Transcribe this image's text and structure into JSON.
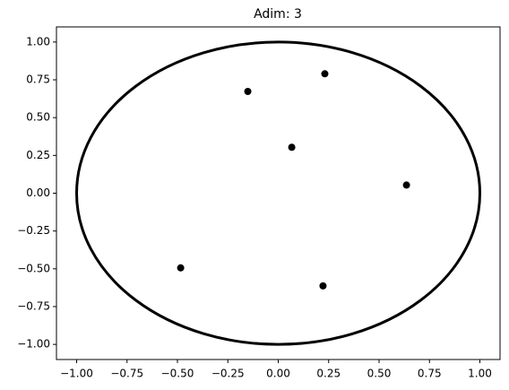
{
  "chart_data": {
    "type": "scatter",
    "title": "Adim: 3",
    "x": [
      0.231,
      -0.151,
      0.067,
      0.636,
      -0.484,
      0.222
    ],
    "values": [
      0.79,
      0.673,
      0.304,
      0.054,
      -0.494,
      -0.613
    ],
    "color": "#000000",
    "circle": {
      "center": [
        0,
        0
      ],
      "radius": 1
    },
    "xlim": [
      -1.1,
      1.1
    ],
    "ylim": [
      -1.1,
      1.1
    ],
    "xticks": [
      {
        "value": -1,
        "label": "−1.00"
      },
      {
        "value": -0.75,
        "label": "−0.75"
      },
      {
        "value": -0.5,
        "label": "−0.50"
      },
      {
        "value": -0.25,
        "label": "−0.25"
      },
      {
        "value": 0,
        "label": "0.00"
      },
      {
        "value": 0.25,
        "label": "0.25"
      },
      {
        "value": 0.5,
        "label": "0.50"
      },
      {
        "value": 0.75,
        "label": "0.75"
      },
      {
        "value": 1,
        "label": "1.00"
      }
    ],
    "yticks": [
      {
        "value": -1,
        "label": "−1.00"
      },
      {
        "value": -0.75,
        "label": "−0.75"
      },
      {
        "value": -0.5,
        "label": "−0.50"
      },
      {
        "value": -0.25,
        "label": "−0.25"
      },
      {
        "value": 0,
        "label": "0.00"
      },
      {
        "value": 0.25,
        "label": "0.25"
      },
      {
        "value": 0.5,
        "label": "0.50"
      },
      {
        "value": 0.75,
        "label": "0.75"
      },
      {
        "value": 1,
        "label": "1.00"
      }
    ],
    "grid": false
  }
}
